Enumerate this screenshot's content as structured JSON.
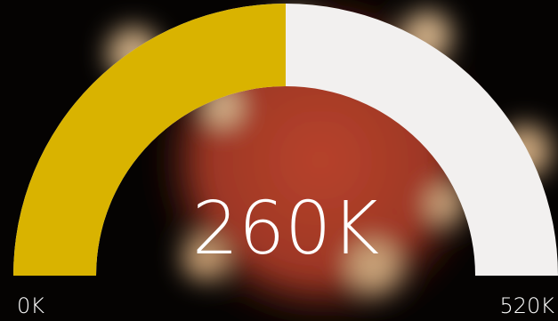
{
  "chart_data": {
    "type": "gauge",
    "values": [
      260000
    ],
    "value_labels": [
      "260K"
    ],
    "ylim": [
      0,
      520000
    ],
    "yticks": [
      {
        "value": 0,
        "label": "0K"
      },
      {
        "value": 520000,
        "label": "520K"
      }
    ],
    "color": "#d9b300",
    "track_color": "#f2f0ef"
  }
}
